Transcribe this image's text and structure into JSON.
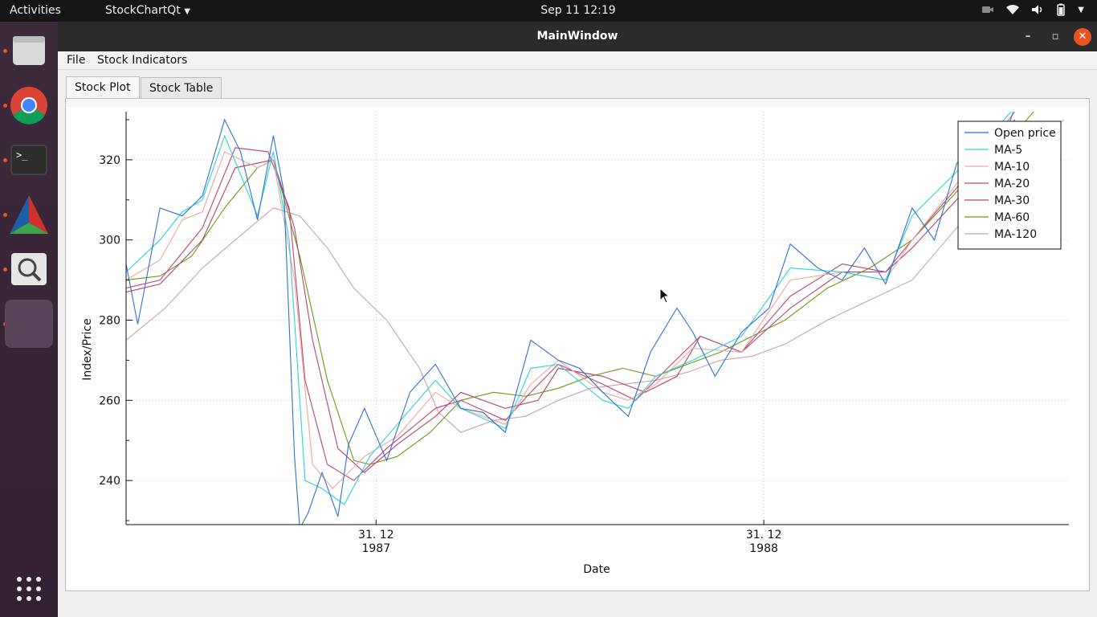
{
  "topbar": {
    "activities": "Activities",
    "app_menu": "StockChartQt",
    "clock": "Sep 11  12:19"
  },
  "dock": {
    "items": [
      {
        "name": "files",
        "icon": "folder-icon"
      },
      {
        "name": "chrome",
        "icon": "chrome-icon"
      },
      {
        "name": "terminal",
        "icon": "terminal-icon"
      },
      {
        "name": "cmake",
        "icon": "cmake-icon"
      },
      {
        "name": "search",
        "icon": "magnifier-icon"
      },
      {
        "name": "active-app",
        "icon": "app-icon"
      }
    ],
    "show_apps_icon": "grid-icon"
  },
  "window": {
    "title": "MainWindow",
    "menu": [
      "File",
      "Stock Indicators"
    ],
    "tabs": [
      "Stock Plot",
      "Stock Table"
    ],
    "active_tab": "Stock Plot"
  },
  "chart_data": {
    "type": "line",
    "xlabel": "Date",
    "ylabel": "Index/Price",
    "ylim": [
      229,
      332
    ],
    "yticks": [
      240,
      260,
      280,
      300,
      320
    ],
    "xticks": [
      {
        "date": "1987-12-31",
        "label_top": "31. 12",
        "label_bottom": "1987"
      },
      {
        "date": "1988-12-31",
        "label_top": "31. 12",
        "label_bottom": "1988"
      }
    ],
    "xlim": [
      "1987-05-09",
      "1989-10-15"
    ],
    "grid": true,
    "legend_position": "top-right",
    "colors": {
      "Open price": "#2e6fd1",
      "MA-5": "#2ad3d6",
      "MA-10": "#e8a99a",
      "MA-20": "#c2407a",
      "MA-30": "#b1446e",
      "MA-60": "#6a9a12",
      "MA-120": "#caa3a5"
    },
    "series": [
      {
        "name": "Open price",
        "x": [
          "1987-05-09",
          "1987-05-20",
          "1987-06-10",
          "1987-07-01",
          "1987-07-20",
          "1987-08-10",
          "1987-08-25",
          "1987-09-10",
          "1987-09-25",
          "1987-10-05",
          "1987-10-15",
          "1987-10-20",
          "1987-10-28",
          "1987-11-10",
          "1987-11-25",
          "1987-12-05",
          "1987-12-20",
          "1988-01-10",
          "1988-02-01",
          "1988-02-25",
          "1988-03-20",
          "1988-04-10",
          "1988-05-01",
          "1988-05-25",
          "1988-06-20",
          "1988-07-10",
          "1988-08-01",
          "1988-08-25",
          "1988-09-15",
          "1988-10-10",
          "1988-10-25",
          "1988-11-15",
          "1988-12-10",
          "1989-01-05",
          "1989-01-25",
          "1989-02-20",
          "1989-03-15",
          "1989-04-05",
          "1989-04-25",
          "1989-05-20",
          "1989-06-10",
          "1989-07-01",
          "1989-07-20",
          "1989-08-10",
          "1989-08-25"
        ],
        "y": [
          294,
          279,
          308,
          306,
          311,
          330,
          322,
          305,
          326,
          312,
          246,
          228,
          232,
          242,
          231,
          249,
          258,
          245,
          262,
          269,
          258,
          257,
          252,
          275,
          270,
          268,
          262,
          256,
          272,
          283,
          277,
          266,
          277,
          283,
          299,
          293,
          290,
          298,
          289,
          308,
          300,
          319,
          325,
          322,
          333
        ]
      },
      {
        "name": "MA-5",
        "x": [
          "1987-05-09",
          "1987-06-10",
          "1987-07-01",
          "1987-07-20",
          "1987-08-10",
          "1987-09-10",
          "1987-09-25",
          "1987-10-10",
          "1987-10-25",
          "1987-11-10",
          "1987-12-01",
          "1987-12-25",
          "1988-01-20",
          "1988-02-25",
          "1988-03-20",
          "1988-05-01",
          "1988-05-25",
          "1988-06-20",
          "1988-08-01",
          "1988-08-25",
          "1988-09-20",
          "1988-10-25",
          "1988-12-10",
          "1989-01-25",
          "1989-03-15",
          "1989-04-25",
          "1989-05-20",
          "1989-07-01",
          "1989-08-25"
        ],
        "y": [
          292,
          300,
          307,
          310,
          326,
          306,
          322,
          300,
          240,
          238,
          234,
          246,
          254,
          265,
          258,
          253,
          268,
          269,
          260,
          258,
          266,
          270,
          276,
          293,
          292,
          290,
          306,
          317,
          333
        ]
      },
      {
        "name": "MA-10",
        "x": [
          "1987-05-09",
          "1987-06-10",
          "1987-07-01",
          "1987-07-20",
          "1987-08-10",
          "1987-09-10",
          "1987-09-25",
          "1987-10-15",
          "1987-11-01",
          "1987-11-20",
          "1987-12-20",
          "1988-01-20",
          "1988-02-25",
          "1988-03-20",
          "1988-05-01",
          "1988-05-25",
          "1988-06-20",
          "1988-08-01",
          "1988-08-25",
          "1988-09-20",
          "1988-10-25",
          "1988-12-10",
          "1989-01-25",
          "1989-03-15",
          "1989-04-25",
          "1989-05-20",
          "1989-07-01",
          "1989-08-25"
        ],
        "y": [
          290,
          295,
          305,
          307,
          322,
          318,
          320,
          290,
          244,
          238,
          246,
          251,
          262,
          258,
          254,
          264,
          270,
          262,
          260,
          264,
          273,
          272,
          290,
          292,
          290,
          300,
          314,
          332
        ]
      },
      {
        "name": "MA-20",
        "x": [
          "1987-05-09",
          "1987-06-10",
          "1987-07-20",
          "1987-08-20",
          "1987-09-20",
          "1987-10-10",
          "1987-10-25",
          "1987-11-15",
          "1987-12-10",
          "1988-01-10",
          "1988-02-25",
          "1988-03-20",
          "1988-05-01",
          "1988-05-25",
          "1988-06-20",
          "1988-08-01",
          "1988-09-01",
          "1988-10-01",
          "1988-11-01",
          "1988-12-10",
          "1989-01-25",
          "1989-03-15",
          "1989-04-25",
          "1989-05-20",
          "1989-07-01",
          "1989-08-25"
        ],
        "y": [
          288,
          290,
          303,
          323,
          322,
          308,
          265,
          244,
          240,
          248,
          258,
          260,
          255,
          262,
          269,
          264,
          260,
          268,
          276,
          272,
          286,
          294,
          292,
          300,
          313,
          332
        ]
      },
      {
        "name": "MA-30",
        "x": [
          "1987-05-09",
          "1987-06-10",
          "1987-07-20",
          "1987-08-20",
          "1987-09-25",
          "1987-10-15",
          "1987-11-01",
          "1987-11-25",
          "1987-12-20",
          "1988-01-20",
          "1988-02-25",
          "1988-03-20",
          "1988-05-01",
          "1988-06-01",
          "1988-06-20",
          "1988-08-01",
          "1988-09-10",
          "1988-10-10",
          "1988-11-01",
          "1988-12-10",
          "1989-01-25",
          "1989-03-15",
          "1989-04-25",
          "1989-05-20",
          "1989-07-01",
          "1989-08-25"
        ],
        "y": [
          287,
          289,
          300,
          318,
          320,
          303,
          275,
          248,
          242,
          249,
          256,
          262,
          258,
          260,
          268,
          266,
          262,
          266,
          276,
          272,
          283,
          292,
          292,
          298,
          310,
          330
        ]
      },
      {
        "name": "MA-60",
        "x": [
          "1987-05-09",
          "1987-06-10",
          "1987-07-10",
          "1987-08-10",
          "1987-09-10",
          "1987-09-25",
          "1987-10-20",
          "1987-11-15",
          "1987-12-10",
          "1987-12-25",
          "1988-01-20",
          "1988-02-20",
          "1988-03-20",
          "1988-04-20",
          "1988-05-20",
          "1988-06-20",
          "1988-07-20",
          "1988-08-20",
          "1988-09-20",
          "1988-10-20",
          "1988-11-20",
          "1988-12-20",
          "1989-01-20",
          "1989-03-01",
          "1989-04-10",
          "1989-05-20",
          "1989-07-01",
          "1989-08-20",
          "1989-09-15"
        ],
        "y": [
          290,
          291,
          296,
          308,
          318,
          320,
          296,
          265,
          245,
          244,
          246,
          252,
          260,
          262,
          261,
          263,
          266,
          268,
          266,
          269,
          272,
          276,
          280,
          288,
          293,
          300,
          312,
          325,
          333
        ]
      },
      {
        "name": "MA-120",
        "x": [
          "1987-05-09",
          "1987-06-15",
          "1987-07-20",
          "1987-08-20",
          "1987-09-25",
          "1987-10-20",
          "1987-11-15",
          "1987-12-10",
          "1988-01-10",
          "1988-02-10",
          "1988-02-28",
          "1988-03-20",
          "1988-04-20",
          "1988-05-20",
          "1988-06-20",
          "1988-07-20",
          "1988-08-20",
          "1988-09-20",
          "1988-10-20",
          "1988-11-20",
          "1988-12-20",
          "1989-01-20",
          "1989-03-01",
          "1989-04-10",
          "1989-05-20",
          "1989-07-01",
          "1989-08-20",
          "1989-10-10"
        ],
        "y": [
          275,
          283,
          293,
          300,
          308,
          306,
          298,
          288,
          280,
          268,
          257,
          252,
          255,
          256,
          260,
          263,
          264,
          265,
          267,
          270,
          271,
          274,
          280,
          285,
          290,
          303,
          315,
          330
        ]
      }
    ]
  }
}
